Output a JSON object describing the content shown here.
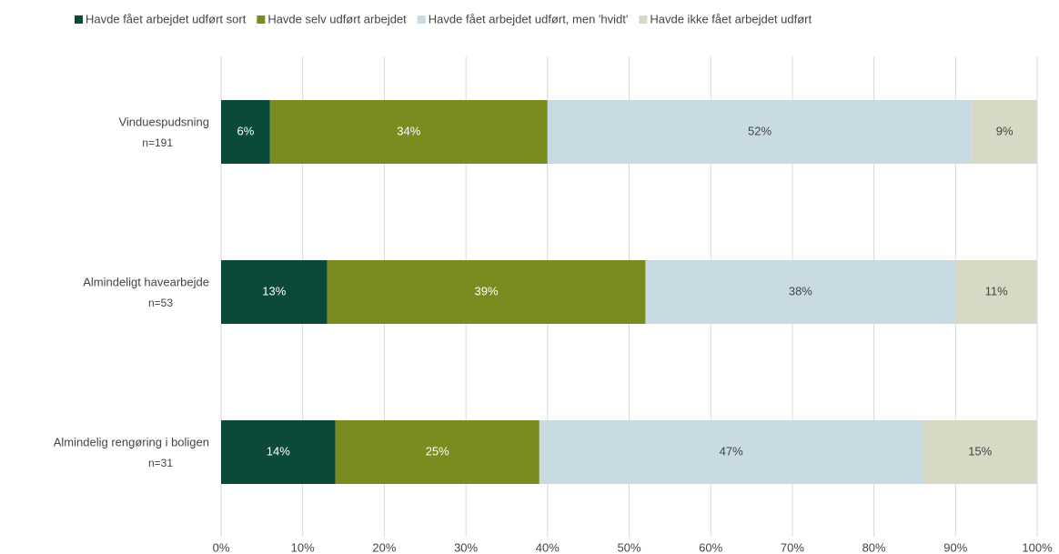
{
  "chart_data": {
    "type": "stacked_barh",
    "categories": [
      "Vinduespudsning",
      "Almindeligt havearbejde",
      "Almindelig rengøring i boligen"
    ],
    "category_notes": [
      "n=191",
      "n=53",
      "n=31"
    ],
    "series": [
      {
        "name": "Havde fået arbejdet udført sort",
        "color": "#0b4a3b",
        "label_color": "#ffffff",
        "values": [
          6,
          13,
          14
        ],
        "value_labels": [
          "6%",
          "13%",
          "14%"
        ]
      },
      {
        "name": "Havde selv udført arbejdet",
        "color": "#788c1f",
        "label_color": "#ffffff",
        "values": [
          34,
          39,
          25
        ],
        "value_labels": [
          "34%",
          "39%",
          "25%"
        ]
      },
      {
        "name": "Havde fået arbejdet udført, men 'hvidt'",
        "color": "#c8dbe2",
        "label_color": "#444444",
        "values": [
          52,
          38,
          47
        ],
        "value_labels": [
          "52%",
          "38%",
          "47%"
        ]
      },
      {
        "name": "Havde ikke fået arbejdet udført",
        "color": "#d8d9c5",
        "label_color": "#444444",
        "values": [
          9,
          11,
          15
        ],
        "value_labels": [
          "9%",
          "11%",
          "15%"
        ]
      }
    ],
    "xlim": [
      0,
      100
    ],
    "xticks": [
      {
        "value": 0,
        "label": "0%"
      },
      {
        "value": 10,
        "label": "10%"
      },
      {
        "value": 20,
        "label": "20%"
      },
      {
        "value": 30,
        "label": "30%"
      },
      {
        "value": 40,
        "label": "40%"
      },
      {
        "value": 50,
        "label": "50%"
      },
      {
        "value": 60,
        "label": "60%"
      },
      {
        "value": 70,
        "label": "70%"
      },
      {
        "value": 80,
        "label": "80%"
      },
      {
        "value": 90,
        "label": "90%"
      },
      {
        "value": 100,
        "label": "100%"
      }
    ],
    "grid": true,
    "legend": "top"
  }
}
